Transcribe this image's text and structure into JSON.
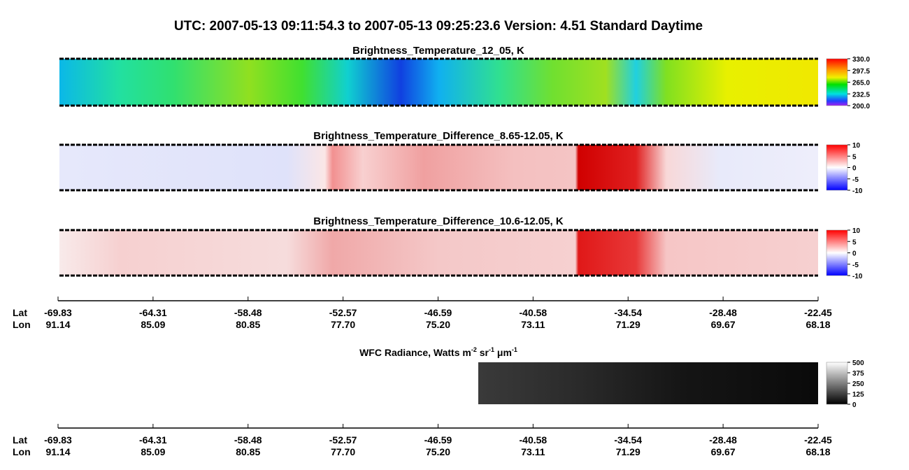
{
  "header": {
    "title": "UTC:  2007-05-13   09:11:54.3  to  2007-05-13   09:25:23.6    Version: 4.51  Standard Daytime"
  },
  "panels": [
    {
      "title": "Brightness_Temperature_12_05, K",
      "colorbar": [
        "330.0",
        "297.5",
        "265.0",
        "232.5",
        "200.0"
      ]
    },
    {
      "title": "Brightness_Temperature_Difference_8.65-12.05, K",
      "colorbar": [
        "10",
        "5",
        "0",
        "-5",
        "-10"
      ]
    },
    {
      "title": "Brightness_Temperature_Difference_10.6-12.05, K",
      "colorbar": [
        "10",
        "5",
        "0",
        "-5",
        "-10"
      ]
    },
    {
      "title_parts": [
        "WFC Radiance, Watts m",
        "-2",
        " sr",
        "-1",
        " μm",
        "-1"
      ],
      "colorbar": [
        "500",
        "375",
        "250",
        "125",
        "0"
      ]
    }
  ],
  "axes": [
    {
      "lat_label": "Lat",
      "lon_label": "Lon",
      "lat": [
        "-69.83",
        "-64.31",
        "-58.48",
        "-52.57",
        "-46.59",
        "-40.58",
        "-34.54",
        "-28.48",
        "-22.45"
      ],
      "lon": [
        "91.14",
        "85.09",
        "80.85",
        "77.70",
        "75.20",
        "73.11",
        "71.29",
        "69.67",
        "68.18"
      ]
    },
    {
      "lat_label": "Lat",
      "lon_label": "Lon",
      "lat": [
        "-69.83",
        "-64.31",
        "-58.48",
        "-52.57",
        "-46.59",
        "-40.58",
        "-34.54",
        "-28.48",
        "-22.45"
      ],
      "lon": [
        "91.14",
        "85.09",
        "80.85",
        "77.70",
        "75.20",
        "73.11",
        "71.29",
        "69.67",
        "68.18"
      ]
    }
  ]
}
